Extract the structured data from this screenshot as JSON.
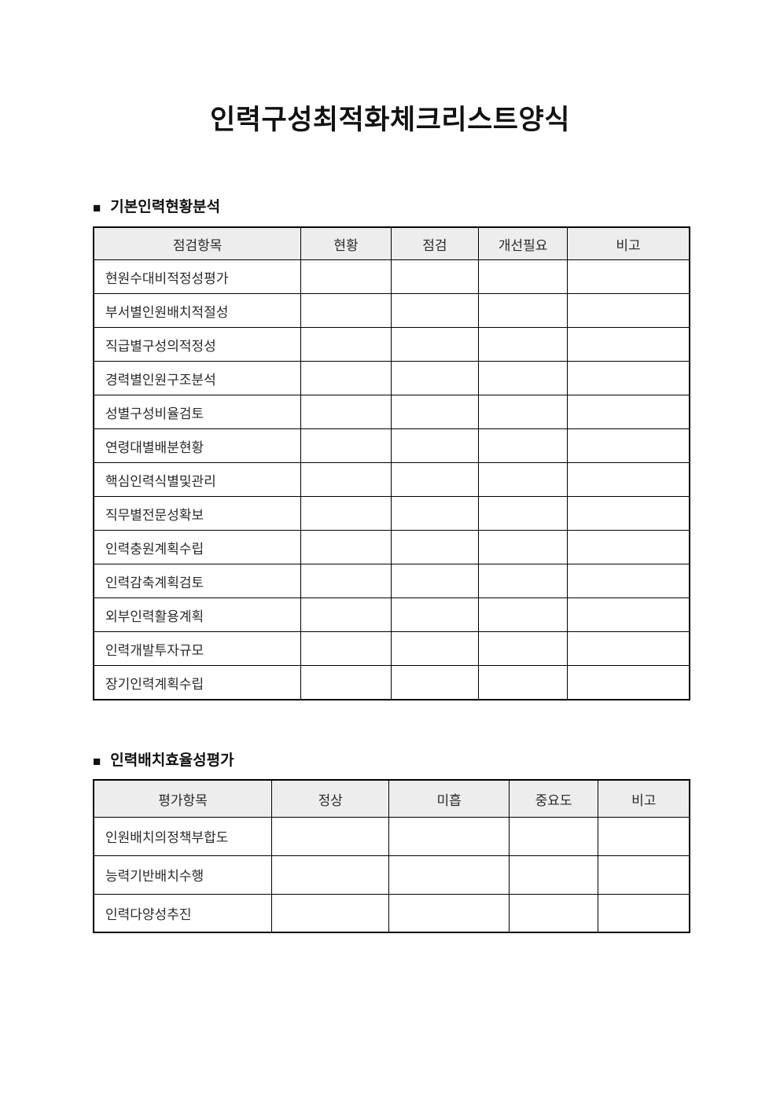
{
  "page": {
    "title": "인력구성최적화체크리스트양식"
  },
  "colors": {
    "header_bg": "#ededed",
    "border": "#000000",
    "text": "#1f1f1f"
  },
  "sections": [
    {
      "bullet": "■",
      "heading": "기본인력현황분석",
      "columns": [
        "점검항목",
        "현황",
        "점검",
        "개선필요",
        "비고"
      ],
      "rows": [
        "현원수대비적정성평가",
        "부서별인원배치적절성",
        "직급별구성의적정성",
        "경력별인원구조분석",
        "성별구성비율검토",
        "연령대별배분현황",
        "핵심인력식별및관리",
        "직무별전문성확보",
        "인력충원계획수립",
        "인력감축계획검토",
        "외부인력활용계획",
        "인력개발투자규모",
        "장기인력계획수립"
      ]
    },
    {
      "bullet": "■",
      "heading": "인력배치효율성평가",
      "columns": [
        "평가항목",
        "정상",
        "미흡",
        "중요도",
        "비고"
      ],
      "rows": [
        "인원배치의정책부합도",
        "능력기반배치수행",
        "인력다양성추진"
      ]
    }
  ]
}
